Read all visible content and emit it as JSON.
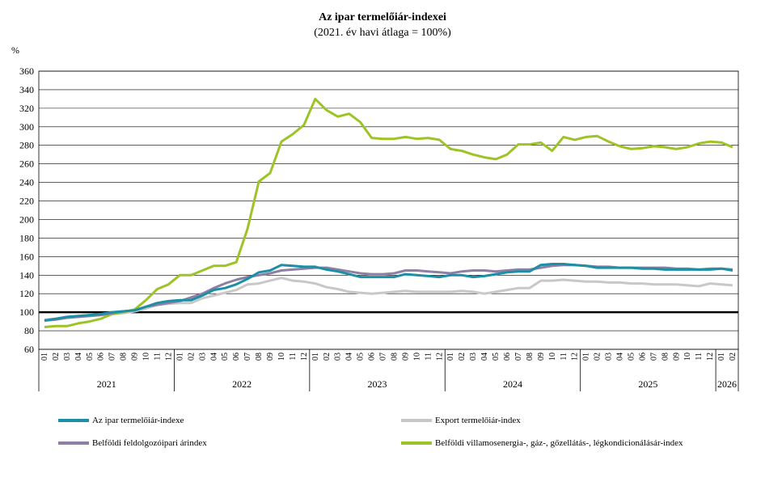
{
  "chart_data": {
    "type": "line",
    "title": "Az ipar  termelőiár-indexei",
    "subtitle": "(2021. év havi átlaga = 100%)",
    "ylabel": "%",
    "ylim": [
      60,
      360
    ],
    "yticks": [
      60,
      80,
      100,
      120,
      140,
      160,
      180,
      200,
      220,
      240,
      260,
      280,
      300,
      320,
      340,
      360
    ],
    "grid": true,
    "reference_line": 100,
    "months": [
      "01",
      "02",
      "03",
      "04",
      "05",
      "06",
      "07",
      "08",
      "09",
      "10",
      "11",
      "12"
    ],
    "years": [
      "2021",
      "2022",
      "2023",
      "2024",
      "2025",
      "2026"
    ],
    "x_last_month_count": 2,
    "legend_position": "bottom",
    "series": [
      {
        "name": "Az ipar termelőiár-indexe",
        "color": "#1b8fa6",
        "values": [
          91,
          93,
          95,
          96,
          97,
          98,
          100,
          101,
          102,
          106,
          110,
          112,
          113,
          113,
          118,
          124,
          126,
          130,
          136,
          143,
          145,
          151,
          150,
          149,
          149,
          146,
          144,
          141,
          138,
          138,
          138,
          138,
          141,
          140,
          139,
          138,
          140,
          140,
          138,
          139,
          141,
          143,
          144,
          144,
          151,
          152,
          152,
          151,
          150,
          148,
          148,
          148,
          148,
          147,
          147,
          146,
          146,
          146,
          146,
          146,
          147,
          145
        ]
      },
      {
        "name": "Export termelőiár-index",
        "color": "#c8c8c8",
        "values": [
          92,
          93,
          94,
          95,
          96,
          97,
          98,
          99,
          101,
          104,
          108,
          109,
          110,
          110,
          115,
          118,
          121,
          124,
          130,
          131,
          134,
          137,
          134,
          133,
          131,
          127,
          125,
          122,
          121,
          120,
          121,
          122,
          123,
          122,
          122,
          122,
          122,
          123,
          122,
          120,
          122,
          124,
          126,
          126,
          134,
          134,
          135,
          134,
          133,
          133,
          132,
          132,
          131,
          131,
          130,
          130,
          130,
          129,
          128,
          131,
          130,
          129
        ]
      },
      {
        "name": "Belföldi feldolgozóipari árindex",
        "color": "#8e7fa3",
        "values": [
          91,
          92,
          94,
          95,
          96,
          97,
          99,
          101,
          102,
          106,
          108,
          110,
          112,
          116,
          120,
          126,
          131,
          135,
          138,
          140,
          142,
          145,
          146,
          147,
          148,
          148,
          146,
          144,
          142,
          141,
          141,
          142,
          145,
          145,
          144,
          143,
          142,
          144,
          145,
          145,
          144,
          145,
          146,
          146,
          148,
          150,
          151,
          151,
          150,
          149,
          149,
          148,
          148,
          148,
          148,
          148,
          147,
          147,
          146,
          147,
          147,
          146
        ]
      },
      {
        "name": "Belföldi villamosenergia-, gáz-, gőzellátás-, légkondicionálásár-index",
        "color": "#9dc426",
        "values": [
          84,
          85,
          85,
          88,
          90,
          93,
          98,
          100,
          103,
          113,
          125,
          130,
          140,
          140,
          145,
          150,
          150,
          154,
          190,
          241,
          250,
          284,
          292,
          302,
          330,
          318,
          311,
          314,
          305,
          288,
          287,
          287,
          289,
          287,
          288,
          286,
          276,
          274,
          270,
          267,
          265,
          270,
          281,
          281,
          283,
          274,
          289,
          286,
          289,
          290,
          284,
          279,
          276,
          277,
          279,
          278,
          276,
          278,
          282,
          284,
          283,
          278
        ]
      }
    ]
  }
}
